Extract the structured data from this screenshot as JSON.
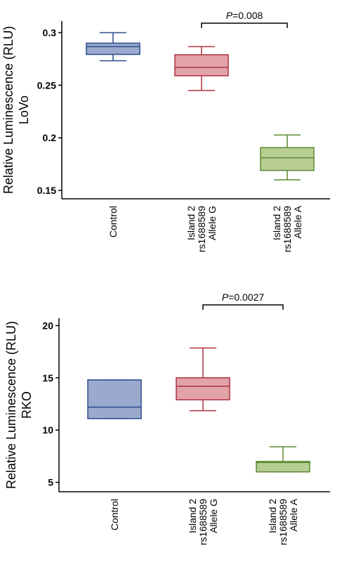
{
  "chart_data": [
    {
      "type": "box",
      "ylabel": [
        "Relative Luminescence (RLU)",
        "LoVo"
      ],
      "categories": [
        [
          "Control"
        ],
        [
          "Island 2",
          "rs1688589",
          "Allele G"
        ],
        [
          "Island 2",
          "rs1688589",
          "Allele A"
        ]
      ],
      "boxes": [
        {
          "min": 0.2733,
          "q1": 0.2793,
          "median": 0.2867,
          "q3": 0.29,
          "max": 0.3
        },
        {
          "min": 0.245,
          "q1": 0.259,
          "median": 0.267,
          "q3": 0.279,
          "max": 0.2867
        },
        {
          "min": 0.16,
          "q1": 0.169,
          "median": 0.181,
          "q3": 0.1907,
          "max": 0.2027
        }
      ],
      "colors": [
        "#9aaace",
        "#e2a2aa",
        "#b7cd92"
      ],
      "edge_colors": [
        "#2a4a8a",
        "#b03040",
        "#5a8a30"
      ],
      "ylim": [
        0.142,
        0.311
      ],
      "yticks": [
        0.15,
        0.2,
        0.25,
        0.3
      ],
      "annotation": {
        "italic": "P",
        "text": "=0.008"
      }
    },
    {
      "type": "box",
      "ylabel": [
        "Relative Luminescence (RLU)",
        "RKO"
      ],
      "categories": [
        [
          "Control"
        ],
        [
          "Island 2",
          "rs1688589",
          "Allele G"
        ],
        [
          "Island 2",
          "rs1688589",
          "Allele A"
        ]
      ],
      "boxes": [
        {
          "min": 11.1,
          "q1": 11.1,
          "median": 12.2,
          "q3": 14.8,
          "max": 14.8
        },
        {
          "min": 11.85,
          "q1": 12.9,
          "median": 14.2,
          "q3": 15.0,
          "max": 17.85
        },
        {
          "min": 6.0,
          "q1": 6.0,
          "median": 6.9,
          "q3": 7.0,
          "max": 8.4
        }
      ],
      "colors": [
        "#9aaace",
        "#e2a2aa",
        "#b7cd92"
      ],
      "edge_colors": [
        "#2a4a8a",
        "#b03040",
        "#5a8a30"
      ],
      "ylim": [
        4.1,
        20.7
      ],
      "yticks": [
        5,
        10,
        15,
        20
      ],
      "annotation": {
        "italic": "P",
        "text": "=0.0027"
      }
    }
  ]
}
